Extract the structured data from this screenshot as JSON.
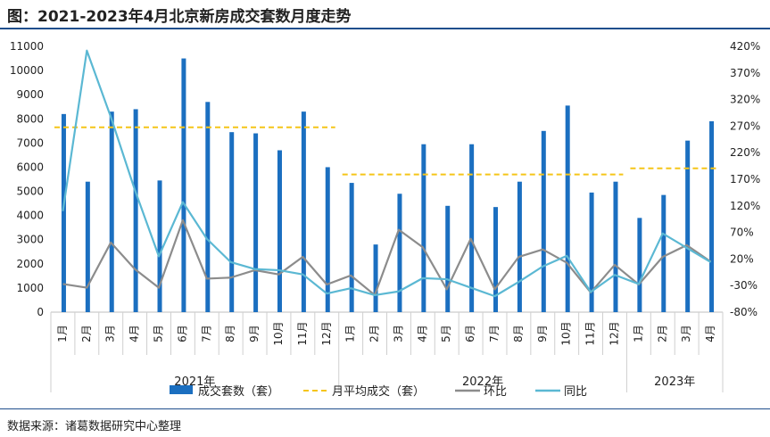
{
  "title": "图：2021-2023年4月北京新房成交套数月度走势",
  "source": "数据来源：诸葛数据研究中心整理",
  "chart_data": {
    "type": "bar",
    "categories": [
      "1月",
      "2月",
      "3月",
      "4月",
      "5月",
      "6月",
      "7月",
      "8月",
      "9月",
      "10月",
      "11月",
      "12月",
      "1月",
      "2月",
      "3月",
      "4月",
      "5月",
      "6月",
      "7月",
      "8月",
      "9月",
      "10月",
      "11月",
      "12月",
      "1月",
      "2月",
      "3月",
      "4月"
    ],
    "year_groups": [
      {
        "label": "2021年",
        "count": 12
      },
      {
        "label": "2022年",
        "count": 12
      },
      {
        "label": "2023年",
        "count": 4
      }
    ],
    "y_left": {
      "ylim": [
        0,
        11000
      ],
      "ticks": [
        0,
        1000,
        2000,
        3000,
        4000,
        5000,
        6000,
        7000,
        8000,
        9000,
        10000,
        11000
      ]
    },
    "y_right": {
      "ylim": [
        -80,
        420
      ],
      "ticks": [
        "420%",
        "370%",
        "320%",
        "270%",
        "220%",
        "170%",
        "120%",
        "70%",
        "20%",
        "-30%",
        "-80%"
      ],
      "tick_values": [
        420,
        370,
        320,
        270,
        220,
        170,
        120,
        70,
        20,
        -30,
        -80
      ]
    },
    "series": [
      {
        "name": "成交套数（套）",
        "type": "bar",
        "axis": "left",
        "color": "#1b6fc0",
        "values": [
          8200,
          5400,
          8300,
          8400,
          5450,
          10500,
          8700,
          7450,
          7400,
          6700,
          8300,
          6000,
          5350,
          2800,
          4900,
          6950,
          4400,
          6950,
          4350,
          5400,
          7500,
          8550,
          4950,
          5400,
          3900,
          4850,
          7100,
          7900
        ]
      },
      {
        "name": "月平均成交（套）",
        "type": "dashed",
        "axis": "left",
        "color": "#f5c518",
        "segments": [
          {
            "from": 0,
            "to": 11,
            "value": 7650
          },
          {
            "from": 12,
            "to": 23,
            "value": 5700
          },
          {
            "from": 24,
            "to": 27,
            "value": 5950
          }
        ]
      },
      {
        "name": "环比",
        "type": "line",
        "axis": "right",
        "color": "#8c8c8c",
        "values": [
          -27,
          -34,
          51,
          1,
          -34,
          93,
          -17,
          -15,
          -1,
          -9,
          24,
          -28,
          -11,
          -48,
          75,
          42,
          -37,
          58,
          -37,
          24,
          38,
          13,
          -43,
          9,
          -28,
          24,
          46,
          15
        ]
      },
      {
        "name": "同比",
        "type": "line",
        "axis": "right",
        "color": "#5bb8d3",
        "values": [
          110,
          412,
          287,
          150,
          25,
          127,
          58,
          14,
          1,
          -1,
          -9,
          -45,
          -35,
          -48,
          -41,
          -16,
          -18,
          -34,
          -50,
          -23,
          6,
          26,
          -42,
          -10,
          -27,
          68,
          41,
          14
        ]
      }
    ]
  }
}
